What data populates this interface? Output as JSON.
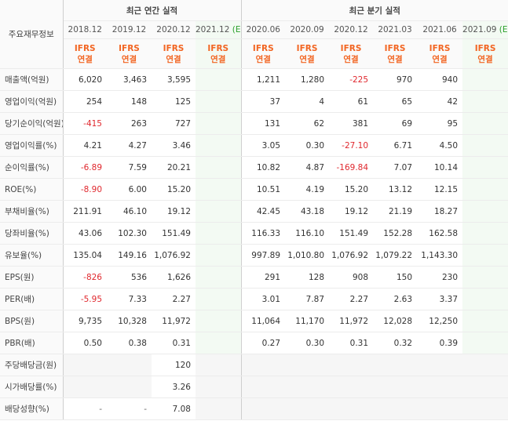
{
  "table": {
    "corner": "주요재무정보",
    "annual_title": "최근 연간 실적",
    "quarter_title": "최근 분기 실적",
    "columns": [
      {
        "period": "2018.12",
        "basis": [
          "IFRS",
          "연결"
        ]
      },
      {
        "period": "2019.12",
        "basis": [
          "IFRS",
          "연결"
        ]
      },
      {
        "period": "2020.12",
        "basis": [
          "IFRS",
          "연결"
        ]
      },
      {
        "period": "2021.12",
        "mark": "(E)",
        "basis": [
          "IFRS",
          "연결"
        ]
      },
      {
        "period": "2020.06",
        "basis": [
          "IFRS",
          "연결"
        ]
      },
      {
        "period": "2020.09",
        "basis": [
          "IFRS",
          "연결"
        ]
      },
      {
        "period": "2020.12",
        "basis": [
          "IFRS",
          "연결"
        ]
      },
      {
        "period": "2021.03",
        "basis": [
          "IFRS",
          "연결"
        ]
      },
      {
        "period": "2021.06",
        "basis": [
          "IFRS",
          "연결"
        ]
      },
      {
        "period": "2021.09",
        "mark": "(E)",
        "basis": [
          "IFRS",
          "연결"
        ]
      }
    ],
    "groups": [
      {
        "rows": [
          {
            "label": "매출액(억원)",
            "values": [
              "6,020",
              "3,463",
              "3,595",
              null,
              "1,211",
              "1,280",
              "-225",
              "970",
              "940",
              null
            ]
          },
          {
            "label": "영업이익(억원)",
            "values": [
              "254",
              "148",
              "125",
              null,
              "37",
              "4",
              "61",
              "65",
              "42",
              null
            ]
          },
          {
            "label": "당기순이익(억원)",
            "values": [
              "-415",
              "263",
              "727",
              null,
              "131",
              "62",
              "381",
              "69",
              "95",
              null
            ]
          }
        ]
      },
      {
        "rows": [
          {
            "label": "영업이익률(%)",
            "values": [
              "4.21",
              "4.27",
              "3.46",
              null,
              "3.05",
              "0.30",
              "-27.10",
              "6.71",
              "4.50",
              null
            ]
          },
          {
            "label": "순이익률(%)",
            "values": [
              "-6.89",
              "7.59",
              "20.21",
              null,
              "10.82",
              "4.87",
              "-169.84",
              "7.07",
              "10.14",
              null
            ]
          },
          {
            "label": "ROE(%)",
            "values": [
              "-8.90",
              "6.00",
              "15.20",
              null,
              "10.51",
              "4.19",
              "15.20",
              "13.12",
              "12.15",
              null
            ]
          }
        ]
      },
      {
        "rows": [
          {
            "label": "부채비율(%)",
            "values": [
              "211.91",
              "46.10",
              "19.12",
              null,
              "42.45",
              "43.18",
              "19.12",
              "21.19",
              "18.27",
              null
            ]
          },
          {
            "label": "당좌비율(%)",
            "values": [
              "43.06",
              "102.30",
              "151.49",
              null,
              "116.33",
              "116.10",
              "151.49",
              "152.28",
              "162.58",
              null
            ]
          },
          {
            "label": "유보율(%)",
            "values": [
              "135.04",
              "149.16",
              "1,076.92",
              null,
              "997.89",
              "1,010.80",
              "1,076.92",
              "1,079.22",
              "1,143.30",
              null
            ]
          }
        ]
      },
      {
        "rows": [
          {
            "label": "EPS(원)",
            "values": [
              "-826",
              "536",
              "1,626",
              null,
              "291",
              "128",
              "908",
              "150",
              "230",
              null
            ]
          },
          {
            "label": "PER(배)",
            "values": [
              "-5.95",
              "7.33",
              "2.27",
              null,
              "3.01",
              "7.87",
              "2.27",
              "2.63",
              "3.37",
              null
            ]
          },
          {
            "label": "BPS(원)",
            "values": [
              "9,735",
              "10,328",
              "11,972",
              null,
              "11,064",
              "11,170",
              "11,972",
              "12,028",
              "12,250",
              null
            ]
          },
          {
            "label": "PBR(배)",
            "values": [
              "0.50",
              "0.38",
              "0.31",
              null,
              "0.27",
              "0.30",
              "0.31",
              "0.32",
              "0.39",
              null
            ]
          }
        ]
      },
      {
        "dividend": true,
        "rows": [
          {
            "label": "주당배당금(원)",
            "values": [
              null,
              null,
              "120",
              null,
              null,
              null,
              null,
              null,
              null,
              null
            ]
          },
          {
            "label": "시가배당률(%)",
            "values": [
              null,
              null,
              "3.26",
              null,
              null,
              null,
              null,
              null,
              null,
              null
            ]
          },
          {
            "label": "배당성향(%)",
            "values": [
              "-",
              "-",
              "7.08",
              null,
              null,
              null,
              null,
              null,
              null,
              null
            ]
          }
        ]
      }
    ]
  }
}
